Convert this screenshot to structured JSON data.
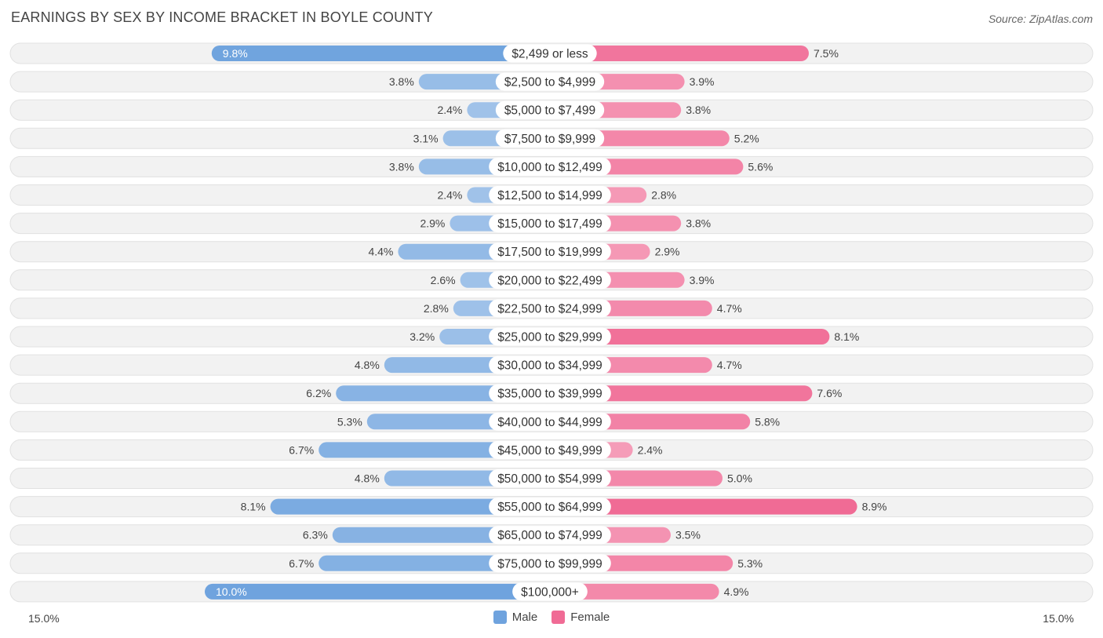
{
  "header": {
    "title": "EARNINGS BY SEX BY INCOME BRACKET IN BOYLE COUNTY",
    "source": "Source: ZipAtlas.com"
  },
  "axis": {
    "left_label": "15.0%",
    "right_label": "15.0%"
  },
  "legend": {
    "male_label": "Male",
    "female_label": "Female",
    "male_color": "#6fa3de",
    "female_color": "#f06b95"
  },
  "chart_data": {
    "type": "bar",
    "orientation": "horizontal-diverging",
    "title": "EARNINGS BY SEX BY INCOME BRACKET IN BOYLE COUNTY",
    "xlim": [
      -15.0,
      15.0
    ],
    "unit": "%",
    "categories": [
      "$2,499 or less",
      "$2,500 to $4,999",
      "$5,000 to $7,499",
      "$7,500 to $9,999",
      "$10,000 to $12,499",
      "$12,500 to $14,999",
      "$15,000 to $17,499",
      "$17,500 to $19,999",
      "$20,000 to $22,499",
      "$22,500 to $24,999",
      "$25,000 to $29,999",
      "$30,000 to $34,999",
      "$35,000 to $39,999",
      "$40,000 to $44,999",
      "$45,000 to $49,999",
      "$50,000 to $54,999",
      "$55,000 to $64,999",
      "$65,000 to $74,999",
      "$75,000 to $99,999",
      "$100,000+"
    ],
    "series": [
      {
        "name": "Male",
        "values": [
          9.8,
          3.8,
          2.4,
          3.1,
          3.8,
          2.4,
          2.9,
          4.4,
          2.6,
          2.8,
          3.2,
          4.8,
          6.2,
          5.3,
          6.7,
          4.8,
          8.1,
          6.3,
          6.7,
          10.0
        ],
        "labels": [
          "9.8%",
          "3.8%",
          "2.4%",
          "3.1%",
          "3.8%",
          "2.4%",
          "2.9%",
          "4.4%",
          "2.6%",
          "2.8%",
          "3.2%",
          "4.8%",
          "6.2%",
          "5.3%",
          "6.7%",
          "4.8%",
          "8.1%",
          "6.3%",
          "6.7%",
          "10.0%"
        ]
      },
      {
        "name": "Female",
        "values": [
          7.5,
          3.9,
          3.8,
          5.2,
          5.6,
          2.8,
          3.8,
          2.9,
          3.9,
          4.7,
          8.1,
          4.7,
          7.6,
          5.8,
          2.4,
          5.0,
          8.9,
          3.5,
          5.3,
          4.9
        ],
        "labels": [
          "7.5%",
          "3.9%",
          "3.8%",
          "5.2%",
          "5.6%",
          "2.8%",
          "3.8%",
          "2.9%",
          "3.9%",
          "4.7%",
          "8.1%",
          "4.7%",
          "7.6%",
          "5.8%",
          "2.4%",
          "5.0%",
          "8.9%",
          "3.5%",
          "5.3%",
          "4.9%"
        ]
      }
    ]
  }
}
